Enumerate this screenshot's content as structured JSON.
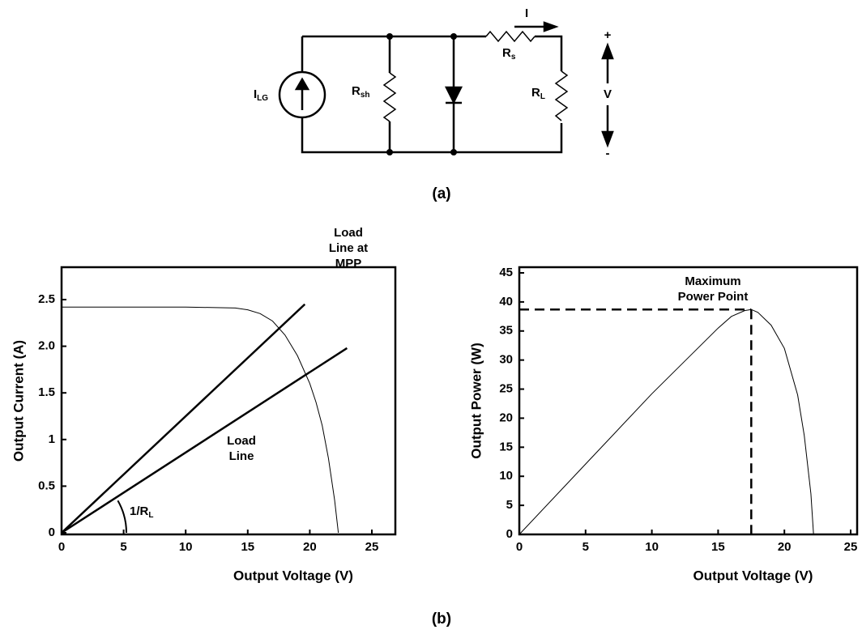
{
  "diagram": {
    "current_label": "I",
    "source_label": {
      "main": "I",
      "sub": "LG"
    },
    "shunt_label": {
      "main": "R",
      "sub": "sh"
    },
    "series_label": {
      "main": "R",
      "sub": "s"
    },
    "load_label": {
      "main": "R",
      "sub": "L"
    },
    "voltage_label": "V",
    "plus": "+",
    "minus": "-",
    "caption": "(a)"
  },
  "caption": "(b)",
  "chart_data": [
    {
      "type": "line",
      "xlabel": "Output Voltage (V)",
      "ylabel": "Output Current (A)",
      "xlim": [
        0,
        25
      ],
      "ylim": [
        0,
        2.5
      ],
      "xticks": [
        0,
        5,
        10,
        15,
        20,
        25
      ],
      "yticks": [
        0,
        0.5,
        1,
        1.5,
        {
          "value": 2,
          "label": "2.0"
        },
        2.5
      ],
      "series": [
        {
          "color": "#000000",
          "x": [
            0,
            5,
            10,
            14,
            15,
            16,
            17,
            18,
            19,
            20,
            20.5,
            21,
            21.5,
            22,
            22.3
          ],
          "values": [
            2.42,
            2.42,
            2.42,
            2.41,
            2.39,
            2.35,
            2.27,
            2.12,
            1.9,
            1.6,
            1.4,
            1.15,
            0.8,
            0.35,
            0
          ]
        },
        {
          "color": "#000000",
          "x": [
            0,
            19.6
          ],
          "values": [
            0,
            2.45
          ]
        },
        {
          "color": "#000000",
          "x": [
            0,
            23
          ],
          "values": [
            0,
            1.98
          ]
        }
      ],
      "annotations": [
        [
          "Load",
          "Line at",
          "MPP"
        ],
        [
          "Load",
          "Line"
        ]
      ],
      "slope_label": {
        "main": "1/R",
        "sub": "L"
      }
    },
    {
      "type": "line",
      "xlabel": "Output Voltage (V)",
      "ylabel": "Output Power (W)",
      "xlim": [
        0,
        25
      ],
      "ylim": [
        0,
        45
      ],
      "xticks": [
        0,
        5,
        10,
        15,
        20,
        25
      ],
      "yticks": [
        0,
        5,
        10,
        15,
        20,
        25,
        30,
        35,
        40,
        45
      ],
      "series": [
        {
          "color": "#000000",
          "x": [
            0,
            5,
            10,
            15,
            16,
            17,
            17.5,
            18,
            19,
            20,
            21,
            21.5,
            22,
            22.2
          ],
          "values": [
            0,
            12.1,
            24.2,
            35.5,
            37.5,
            38.5,
            38.7,
            38.2,
            36,
            32,
            24,
            17,
            7,
            0
          ]
        }
      ],
      "mpp": {
        "x": 17.5,
        "y": 38.7
      },
      "annotations": [
        [
          "Maximum",
          "Power Point"
        ]
      ]
    }
  ]
}
